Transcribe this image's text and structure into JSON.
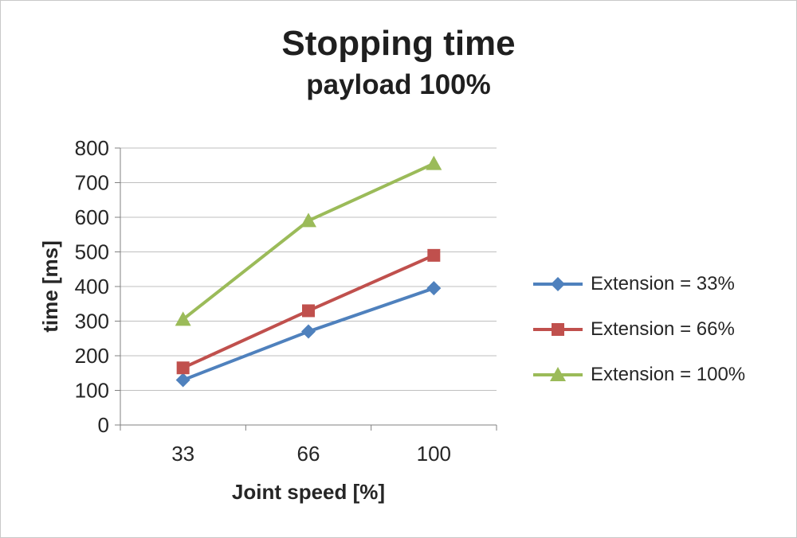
{
  "page": {
    "background": "#ffffff",
    "border_color": "#c9c9c9"
  },
  "chart_data": {
    "type": "line",
    "title": "Stopping time",
    "subtitle": "payload 100%",
    "xlabel": "Joint speed [%]",
    "ylabel": "time [ms]",
    "categories": [
      "33",
      "66",
      "100"
    ],
    "series": [
      {
        "name": "Extension = 33%",
        "color": "#4f81bd",
        "marker": "diamond",
        "values": [
          130,
          270,
          395
        ]
      },
      {
        "name": "Extension = 66%",
        "color": "#c0504d",
        "marker": "square",
        "values": [
          165,
          330,
          490
        ]
      },
      {
        "name": "Extension = 100%",
        "color": "#9bbb59",
        "marker": "triangle",
        "values": [
          305,
          590,
          755
        ]
      }
    ],
    "ylim": [
      0,
      800
    ],
    "ytick_step": 100,
    "grid": true,
    "legend_position": "right",
    "axis_color": "#808080",
    "grid_color": "#bfbfbf",
    "text_color": "#262626",
    "title_color": "#1f1f1f"
  }
}
